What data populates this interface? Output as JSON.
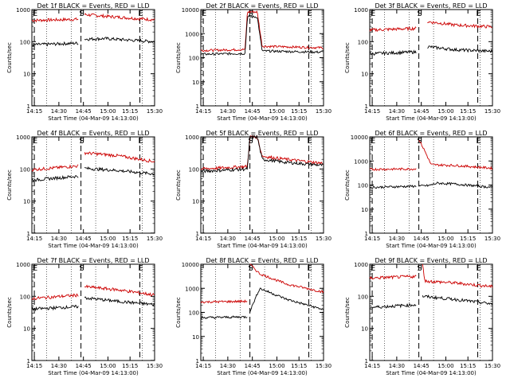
{
  "chart_data": [
    {
      "type": "line",
      "title": "Det 1f BLACK = Events, RED = LLD",
      "xlabel": "Start Time (04-Mar-09 14:13:00)",
      "ylabel": "Counts/sec",
      "yscale": "log",
      "ylim": [
        1,
        1000
      ],
      "yticks": [
        "1",
        "10",
        "100",
        "1000"
      ],
      "xlim": [
        0,
        100
      ],
      "xticks": [
        {
          "label": "14:15",
          "x": 2
        },
        {
          "label": "14:30",
          "x": 22
        },
        {
          "label": "14:45",
          "x": 42
        },
        {
          "label": "15:00",
          "x": 62
        },
        {
          "label": "15:15",
          "x": 80
        },
        {
          "label": "15:30",
          "x": 100
        }
      ],
      "markers": [
        {
          "label": "E",
          "x": 2
        },
        {
          "label": "S",
          "x": 40
        },
        {
          "label": "E",
          "x": 88
        }
      ],
      "segments": [
        [
          0,
          38
        ],
        [
          43,
          100
        ]
      ],
      "series": [
        {
          "color": "#cc0000",
          "values": [
            [
              0,
              460
            ],
            [
              38,
              500
            ],
            [
              43,
              700
            ],
            [
              60,
              620
            ],
            [
              100,
              480
            ]
          ]
        },
        {
          "color": "#000000",
          "values": [
            [
              0,
              80
            ],
            [
              38,
              90
            ],
            [
              43,
              120
            ],
            [
              60,
              125
            ],
            [
              100,
              100
            ]
          ]
        }
      ]
    },
    {
      "type": "line",
      "title": "Det 2f BLACK = Events, RED = LLD",
      "xlabel": "Start Time (04-Mar-09 14:13:00)",
      "ylabel": "Counts/sec",
      "yscale": "log",
      "ylim": [
        1,
        10000
      ],
      "yticks": [
        "1",
        "10",
        "100",
        "1000",
        "10000"
      ],
      "xlim": [
        0,
        100
      ],
      "xticks": [
        {
          "label": "14:15",
          "x": 2
        },
        {
          "label": "14:30",
          "x": 22
        },
        {
          "label": "14:45",
          "x": 42
        },
        {
          "label": "15:00",
          "x": 62
        },
        {
          "label": "15:15",
          "x": 80
        },
        {
          "label": "15:30",
          "x": 100
        }
      ],
      "markers": [
        {
          "label": "E",
          "x": 2
        },
        {
          "label": "S",
          "x": 40
        },
        {
          "label": "E",
          "x": 88
        }
      ],
      "segments": [
        [
          0,
          100
        ]
      ],
      "series": [
        {
          "color": "#cc0000",
          "values": [
            [
              0,
              200
            ],
            [
              36,
              220
            ],
            [
              38,
              8000
            ],
            [
              46,
              8000
            ],
            [
              50,
              300
            ],
            [
              100,
              260
            ]
          ]
        },
        {
          "color": "#000000",
          "values": [
            [
              0,
              140
            ],
            [
              36,
              150
            ],
            [
              38,
              5000
            ],
            [
              46,
              5000
            ],
            [
              50,
              190
            ],
            [
              100,
              170
            ]
          ]
        }
      ]
    },
    {
      "type": "line",
      "title": "Det 3f BLACK = Events, RED = LLD",
      "xlabel": "Start Time (04-Mar-09 14:13:00)",
      "ylabel": "Counts/sec",
      "yscale": "log",
      "ylim": [
        1,
        1000
      ],
      "yticks": [
        "1",
        "10",
        "100",
        "1000"
      ],
      "xlim": [
        0,
        100
      ],
      "xticks": [
        {
          "label": "14:15",
          "x": 2
        },
        {
          "label": "14:30",
          "x": 22
        },
        {
          "label": "14:45",
          "x": 42
        },
        {
          "label": "15:00",
          "x": 62
        },
        {
          "label": "15:15",
          "x": 80
        },
        {
          "label": "15:30",
          "x": 100
        }
      ],
      "markers": [
        {
          "label": "E",
          "x": 2
        },
        {
          "label": "S",
          "x": 40
        },
        {
          "label": "E",
          "x": 88
        }
      ],
      "segments": [
        [
          0,
          38
        ],
        [
          47,
          100
        ]
      ],
      "series": [
        {
          "color": "#cc0000",
          "values": [
            [
              0,
              230
            ],
            [
              38,
              260
            ],
            [
              47,
              420
            ],
            [
              70,
              330
            ],
            [
              100,
              290
            ]
          ]
        },
        {
          "color": "#000000",
          "values": [
            [
              0,
              42
            ],
            [
              38,
              48
            ],
            [
              47,
              70
            ],
            [
              70,
              56
            ],
            [
              100,
              50
            ]
          ]
        }
      ]
    },
    {
      "type": "line",
      "title": "Det 4f BLACK = Events, RED = LLD",
      "xlabel": "Start Time (04-Mar-09 14:13:00)",
      "ylabel": "Counts/sec",
      "yscale": "log",
      "ylim": [
        1,
        1000
      ],
      "yticks": [
        "1",
        "10",
        "100",
        "1000"
      ],
      "xlim": [
        0,
        100
      ],
      "xticks": [
        {
          "label": "14:15",
          "x": 2
        },
        {
          "label": "14:30",
          "x": 22
        },
        {
          "label": "14:45",
          "x": 42
        },
        {
          "label": "15:00",
          "x": 62
        },
        {
          "label": "15:15",
          "x": 80
        },
        {
          "label": "15:30",
          "x": 100
        }
      ],
      "markers": [
        {
          "label": "E",
          "x": 2
        },
        {
          "label": "S",
          "x": 40
        },
        {
          "label": "E",
          "x": 88
        }
      ],
      "segments": [
        [
          0,
          38
        ],
        [
          43,
          100
        ]
      ],
      "series": [
        {
          "color": "#cc0000",
          "values": [
            [
              0,
              95
            ],
            [
              38,
              125
            ],
            [
              43,
              320
            ],
            [
              70,
              260
            ],
            [
              100,
              170
            ]
          ]
        },
        {
          "color": "#000000",
          "values": [
            [
              0,
              45
            ],
            [
              38,
              60
            ],
            [
              43,
              105
            ],
            [
              70,
              90
            ],
            [
              100,
              70
            ]
          ]
        }
      ]
    },
    {
      "type": "line",
      "title": "Det 5f BLACK = Events, RED = LLD",
      "xlabel": "Start Time (04-Mar-09 14:13:00)",
      "ylabel": "Counts/sec",
      "yscale": "log",
      "ylim": [
        1,
        1000
      ],
      "yticks": [
        "1",
        "10",
        "100",
        "1000"
      ],
      "xlim": [
        0,
        100
      ],
      "xticks": [
        {
          "label": "14:15",
          "x": 2
        },
        {
          "label": "14:30",
          "x": 22
        },
        {
          "label": "14:45",
          "x": 42
        },
        {
          "label": "15:00",
          "x": 62
        },
        {
          "label": "15:15",
          "x": 80
        },
        {
          "label": "15:30",
          "x": 100
        }
      ],
      "markers": [
        {
          "label": "E",
          "x": 2
        },
        {
          "label": "S",
          "x": 40
        },
        {
          "label": "E",
          "x": 88
        }
      ],
      "segments": [
        [
          0,
          100
        ]
      ],
      "series": [
        {
          "color": "#cc0000",
          "values": [
            [
              0,
              100
            ],
            [
              38,
              120
            ],
            [
              40,
              1000
            ],
            [
              46,
              1000
            ],
            [
              50,
              250
            ],
            [
              70,
              200
            ],
            [
              100,
              150
            ]
          ]
        },
        {
          "color": "#000000",
          "values": [
            [
              0,
              85
            ],
            [
              38,
              100
            ],
            [
              40,
              1000
            ],
            [
              46,
              1000
            ],
            [
              50,
              200
            ],
            [
              70,
              160
            ],
            [
              100,
              130
            ]
          ]
        }
      ]
    },
    {
      "type": "line",
      "title": "Det 6f BLACK = Events, RED = LLD",
      "xlabel": "Start Time (04-Mar-09 14:13:00)",
      "ylabel": "Counts/sec",
      "yscale": "log",
      "ylim": [
        1,
        10000
      ],
      "yticks": [
        "1",
        "10",
        "100",
        "1000",
        "10000"
      ],
      "xlim": [
        0,
        100
      ],
      "xticks": [
        {
          "label": "14:15",
          "x": 2
        },
        {
          "label": "14:30",
          "x": 22
        },
        {
          "label": "14:45",
          "x": 42
        },
        {
          "label": "15:00",
          "x": 62
        },
        {
          "label": "15:15",
          "x": 80
        },
        {
          "label": "15:30",
          "x": 100
        }
      ],
      "markers": [
        {
          "label": "E",
          "x": 2
        },
        {
          "label": "S",
          "x": 40
        },
        {
          "label": "E",
          "x": 88
        }
      ],
      "segments": [
        [
          0,
          38
        ],
        [
          40,
          100
        ]
      ],
      "series": [
        {
          "color": "#cc0000",
          "values": [
            [
              0,
              450
            ],
            [
              38,
              470
            ],
            [
              40,
              8000
            ],
            [
              45,
              2500
            ],
            [
              50,
              700
            ],
            [
              70,
              650
            ],
            [
              100,
              500
            ]
          ]
        },
        {
          "color": "#000000",
          "values": [
            [
              0,
              80
            ],
            [
              38,
              90
            ],
            [
              48,
              95
            ],
            [
              55,
              120
            ],
            [
              70,
              110
            ],
            [
              100,
              80
            ]
          ]
        }
      ]
    },
    {
      "type": "line",
      "title": "Det 7f BLACK = Events, RED = LLD",
      "xlabel": "Start Time (04-Mar-09 14:13:00)",
      "ylabel": "Counts/sec",
      "yscale": "log",
      "ylim": [
        1,
        1000
      ],
      "yticks": [
        "1",
        "10",
        "100",
        "1000"
      ],
      "xlim": [
        0,
        100
      ],
      "xticks": [
        {
          "label": "14:15",
          "x": 2
        },
        {
          "label": "14:30",
          "x": 22
        },
        {
          "label": "14:45",
          "x": 42
        },
        {
          "label": "15:00",
          "x": 62
        },
        {
          "label": "15:15",
          "x": 80
        },
        {
          "label": "15:30",
          "x": 100
        }
      ],
      "markers": [
        {
          "label": "E",
          "x": 2
        },
        {
          "label": "S",
          "x": 40
        },
        {
          "label": "E",
          "x": 88
        }
      ],
      "segments": [
        [
          0,
          38
        ],
        [
          43,
          100
        ]
      ],
      "series": [
        {
          "color": "#cc0000",
          "values": [
            [
              0,
              85
            ],
            [
              38,
              110
            ],
            [
              43,
              200
            ],
            [
              70,
              160
            ],
            [
              100,
              110
            ]
          ]
        },
        {
          "color": "#000000",
          "values": [
            [
              0,
              40
            ],
            [
              38,
              48
            ],
            [
              43,
              90
            ],
            [
              70,
              70
            ],
            [
              100,
              55
            ]
          ]
        }
      ]
    },
    {
      "type": "line",
      "title": "Det 8f BLACK = Events, RED = LLD",
      "xlabel": "Start Time (04-Mar-09 14:13:00)",
      "ylabel": "Counts/sec",
      "yscale": "log",
      "ylim": [
        1,
        10000
      ],
      "yticks": [
        "1",
        "10",
        "100",
        "1000",
        "10000"
      ],
      "xlim": [
        0,
        100
      ],
      "xticks": [
        {
          "label": "14:15",
          "x": 2
        },
        {
          "label": "14:30",
          "x": 22
        },
        {
          "label": "14:45",
          "x": 42
        },
        {
          "label": "15:00",
          "x": 62
        },
        {
          "label": "15:15",
          "x": 80
        },
        {
          "label": "15:30",
          "x": 100
        }
      ],
      "markers": [
        {
          "label": "S",
          "x": 40
        },
        {
          "label": "E",
          "x": 88
        }
      ],
      "segments": [
        [
          0,
          38
        ],
        [
          40,
          100
        ]
      ],
      "series": [
        {
          "color": "#cc0000",
          "values": [
            [
              0,
              270
            ],
            [
              38,
              290
            ],
            [
              40,
              10000
            ],
            [
              48,
              4000
            ],
            [
              70,
              1500
            ],
            [
              100,
              700
            ]
          ]
        },
        {
          "color": "#000000",
          "values": [
            [
              0,
              60
            ],
            [
              38,
              65
            ],
            [
              48,
              1000
            ],
            [
              70,
              350
            ],
            [
              100,
              130
            ]
          ]
        }
      ]
    },
    {
      "type": "line",
      "title": "Det 9f BLACK = Events, RED = LLD",
      "xlabel": "Start Time (04-Mar-09 14:13:00)",
      "ylabel": "Counts/sec",
      "yscale": "log",
      "ylim": [
        1,
        1000
      ],
      "yticks": [
        "1",
        "10",
        "100",
        "1000"
      ],
      "xlim": [
        0,
        100
      ],
      "xticks": [
        {
          "label": "14:15",
          "x": 2
        },
        {
          "label": "14:30",
          "x": 22
        },
        {
          "label": "14:45",
          "x": 42
        },
        {
          "label": "15:00",
          "x": 62
        },
        {
          "label": "15:15",
          "x": 80
        },
        {
          "label": "15:30",
          "x": 100
        }
      ],
      "markers": [
        {
          "label": "E",
          "x": 2
        },
        {
          "label": "S",
          "x": 40
        },
        {
          "label": "E",
          "x": 88
        }
      ],
      "segments": [
        [
          0,
          38
        ],
        [
          43,
          100
        ]
      ],
      "series": [
        {
          "color": "#cc0000",
          "values": [
            [
              0,
              370
            ],
            [
              38,
              420
            ],
            [
              43,
              1000
            ],
            [
              45,
              300
            ],
            [
              70,
              260
            ],
            [
              100,
              200
            ]
          ]
        },
        {
          "color": "#000000",
          "values": [
            [
              0,
              45
            ],
            [
              38,
              55
            ],
            [
              43,
              100
            ],
            [
              70,
              80
            ],
            [
              100,
              58
            ]
          ]
        }
      ]
    }
  ]
}
